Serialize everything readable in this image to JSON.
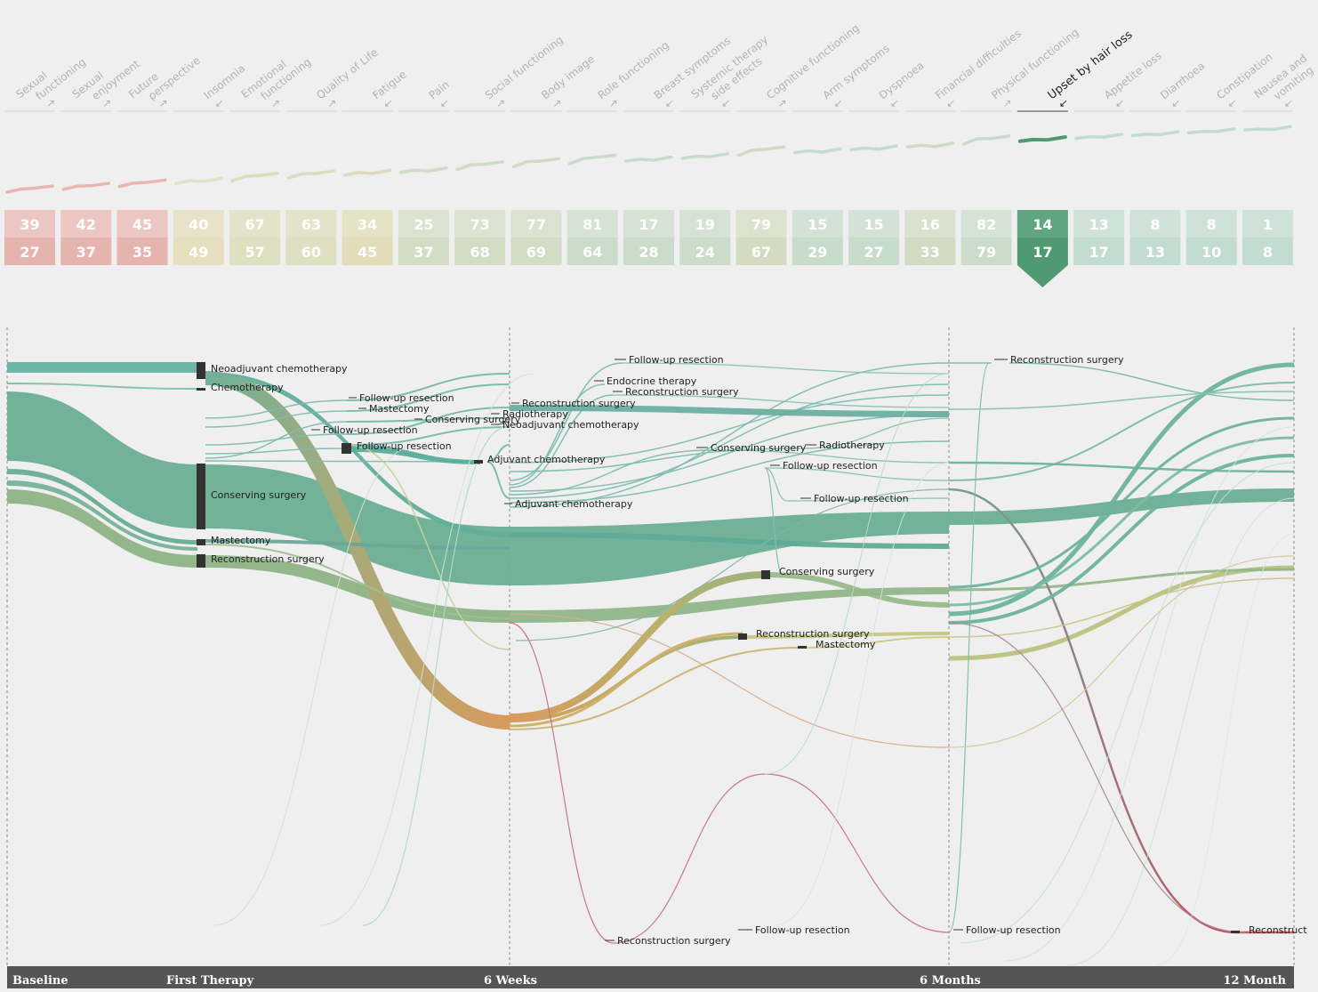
{
  "chart_data": {
    "type": "sankey",
    "title": "",
    "timeline": [
      "Baseline",
      "First Therapy",
      "6 Weeks",
      "6 Months",
      "12 Month"
    ],
    "selected_category": "Upset by hair loss",
    "categories": [
      {
        "name": "Sexual functioning",
        "lines": [
          "Sexual",
          "functioning"
        ],
        "arrow": "↗",
        "top": 39,
        "bottom": 27,
        "color": "#ebc6c2"
      },
      {
        "name": "Sexual enjoyment",
        "lines": [
          "Sexual",
          "enjoyment"
        ],
        "arrow": "↗",
        "top": 42,
        "bottom": 37,
        "color": "#ebc6c2"
      },
      {
        "name": "Future perspective",
        "lines": [
          "Future",
          "perspective"
        ],
        "arrow": "↗",
        "top": 45,
        "bottom": 35,
        "color": "#ebc6c2"
      },
      {
        "name": "Insomnia",
        "lines": [
          "Insomnia"
        ],
        "arrow": "↙",
        "top": 40,
        "bottom": 49,
        "color": "#e8e3c8"
      },
      {
        "name": "Emotional functioning",
        "lines": [
          "Emotional",
          "functioning"
        ],
        "arrow": "↗",
        "top": 67,
        "bottom": 57,
        "color": "#e2e3c9"
      },
      {
        "name": "Quality of Life",
        "lines": [
          "Quality of Life"
        ],
        "arrow": "↗",
        "top": 63,
        "bottom": 60,
        "color": "#e2e3c9"
      },
      {
        "name": "Fatigue",
        "lines": [
          "Fatigue"
        ],
        "arrow": "↙",
        "top": 34,
        "bottom": 45,
        "color": "#e5e2c6"
      },
      {
        "name": "Pain",
        "lines": [
          "Pain"
        ],
        "arrow": "↙",
        "top": 25,
        "bottom": 37,
        "color": "#dbe2cf"
      },
      {
        "name": "Social functioning",
        "lines": [
          "Social functioning"
        ],
        "arrow": "↗",
        "top": 73,
        "bottom": 68,
        "color": "#dbe2cf"
      },
      {
        "name": "Body image",
        "lines": [
          "Body image"
        ],
        "arrow": "↗",
        "top": 77,
        "bottom": 69,
        "color": "#dbe2cf"
      },
      {
        "name": "Role functioning",
        "lines": [
          "Role functioning"
        ],
        "arrow": "↗",
        "top": 81,
        "bottom": 64,
        "color": "#d5e2d4"
      },
      {
        "name": "Breast symptoms",
        "lines": [
          "Breast symptoms"
        ],
        "arrow": "↙",
        "top": 17,
        "bottom": 28,
        "color": "#d5e2d4"
      },
      {
        "name": "Systemic therapy side effects",
        "lines": [
          "Systemic therapy",
          "side effects"
        ],
        "arrow": "↙",
        "top": 19,
        "bottom": 24,
        "color": "#d5e2d4"
      },
      {
        "name": "Cognitive functioning",
        "lines": [
          "Cognitive functioning"
        ],
        "arrow": "↗",
        "top": 79,
        "bottom": 67,
        "color": "#dce2cd"
      },
      {
        "name": "Arm symptoms",
        "lines": [
          "Arm symptoms"
        ],
        "arrow": "↙",
        "top": 15,
        "bottom": 29,
        "color": "#d3e2d6"
      },
      {
        "name": "Dyspnoea",
        "lines": [
          "Dyspnoea"
        ],
        "arrow": "↙",
        "top": 15,
        "bottom": 27,
        "color": "#d3e2d6"
      },
      {
        "name": "Financial difficulties",
        "lines": [
          "Financial difficulties"
        ],
        "arrow": "↙",
        "top": 16,
        "bottom": 33,
        "color": "#d9e2cf"
      },
      {
        "name": "Physical functioning",
        "lines": [
          "Physical functioning"
        ],
        "arrow": "↗",
        "top": 82,
        "bottom": 79,
        "color": "#d5e2d4"
      },
      {
        "name": "Upset by hair loss",
        "lines": [
          "Upset by hair loss"
        ],
        "arrow": "↙",
        "top": 14,
        "bottom": 17,
        "color": "#5fa57f",
        "selected": true
      },
      {
        "name": "Appetite loss",
        "lines": [
          "Appetite loss"
        ],
        "arrow": "↙",
        "top": 13,
        "bottom": 17,
        "color": "#cfe2da"
      },
      {
        "name": "Diarrhoea",
        "lines": [
          "Diarrhoea"
        ],
        "arrow": "↙",
        "top": 8,
        "bottom": 13,
        "color": "#cfe2da"
      },
      {
        "name": "Constipation",
        "lines": [
          "Constipation"
        ],
        "arrow": "↙",
        "top": 8,
        "bottom": 10,
        "color": "#cfe2da"
      },
      {
        "name": "Nausea and vomiting",
        "lines": [
          "Nausea and",
          "vomiting"
        ],
        "arrow": "↙",
        "top": 1,
        "bottom": 8,
        "color": "#cfe2da"
      }
    ],
    "nodes": [
      {
        "label": "Neoadjuvant chemotherapy",
        "stage": "First Therapy"
      },
      {
        "label": "Chemotherapy",
        "stage": "First Therapy"
      },
      {
        "label": "Conserving surgery",
        "stage": "First Therapy"
      },
      {
        "label": "Mastectomy",
        "stage": "First Therapy"
      },
      {
        "label": "Reconstruction surgery",
        "stage": "First Therapy"
      },
      {
        "label": "Follow-up resection",
        "stage": "First Therapy"
      },
      {
        "label": "Mastectomy",
        "stage": "First Therapy"
      },
      {
        "label": "Follow-up resection",
        "stage": "First Therapy"
      },
      {
        "label": "Conserving surgery",
        "stage": "First Therapy"
      },
      {
        "label": "Follow-up resection",
        "stage": "First Therapy"
      },
      {
        "label": "Adjuvant chemotherapy",
        "stage": "First Therapy"
      },
      {
        "label": "Radiotherapy",
        "stage": "6 Weeks"
      },
      {
        "label": "Neoadjuvant chemotherapy",
        "stage": "6 Weeks"
      },
      {
        "label": "Reconstruction surgery",
        "stage": "6 Weeks"
      },
      {
        "label": "Adjuvant chemotherapy",
        "stage": "6 Weeks"
      },
      {
        "label": "Follow-up resection",
        "stage": "6 Weeks"
      },
      {
        "label": "Endocrine therapy",
        "stage": "6 Weeks"
      },
      {
        "label": "Reconstruction surgery",
        "stage": "6 Weeks"
      },
      {
        "label": "Conserving surgery",
        "stage": "6 Weeks"
      },
      {
        "label": "Radiotherapy",
        "stage": "6 Weeks"
      },
      {
        "label": "Follow-up resection",
        "stage": "6 Weeks"
      },
      {
        "label": "Follow-up resection",
        "stage": "6 Weeks"
      },
      {
        "label": "Conserving surgery",
        "stage": "6 Weeks"
      },
      {
        "label": "Reconstruction surgery",
        "stage": "6 Weeks"
      },
      {
        "label": "Mastectomy",
        "stage": "6 Weeks"
      },
      {
        "label": "Reconstruction surgery",
        "stage": "6 Weeks"
      },
      {
        "label": "Follow-up resection",
        "stage": "6 Weeks"
      },
      {
        "label": "Reconstruction surgery",
        "stage": "6 Months"
      },
      {
        "label": "Follow-up resection",
        "stage": "6 Months"
      },
      {
        "label": "Reconstruct",
        "stage": "12 Month"
      }
    ]
  }
}
